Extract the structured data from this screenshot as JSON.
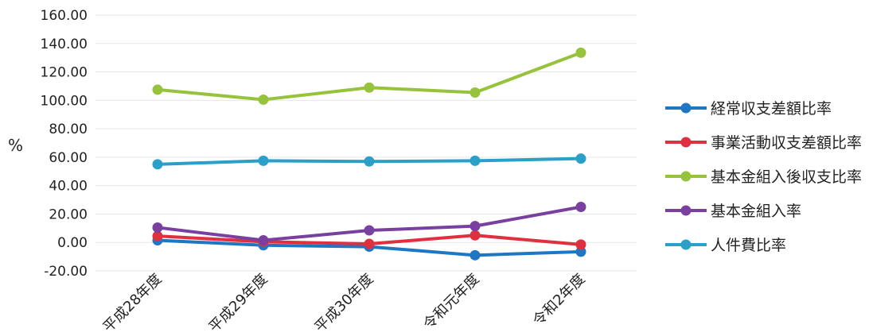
{
  "chart_data": {
    "type": "line",
    "categories": [
      "平成28年度",
      "平成29年度",
      "平成30年度",
      "令和元年度",
      "令和2年度"
    ],
    "ylabel": "%",
    "ylim": [
      -20,
      160
    ],
    "yticks": [
      "-20.00",
      "0.00",
      "20.00",
      "40.00",
      "60.00",
      "80.00",
      "100.00",
      "120.00",
      "140.00",
      "160.00"
    ],
    "grid": true,
    "legend_position": "right",
    "series": [
      {
        "name": "経常収支差額比率",
        "color": "#1f77c4",
        "values": [
          1.5,
          -2.0,
          -3.0,
          -9.0,
          -6.5
        ]
      },
      {
        "name": "事業活動収支差額比率",
        "color": "#e03040",
        "values": [
          4.5,
          0.5,
          -1.0,
          5.0,
          -1.5
        ]
      },
      {
        "name": "基本金組入後収支比率",
        "color": "#96c23c",
        "values": [
          107.5,
          100.5,
          109.0,
          105.5,
          133.5
        ]
      },
      {
        "name": "基本金組入率",
        "color": "#7a40a0",
        "values": [
          10.5,
          1.5,
          8.5,
          11.5,
          25.0
        ]
      },
      {
        "name": "人件費比率",
        "color": "#2aa0c8",
        "values": [
          55.0,
          57.5,
          57.0,
          57.5,
          59.0
        ]
      }
    ]
  }
}
